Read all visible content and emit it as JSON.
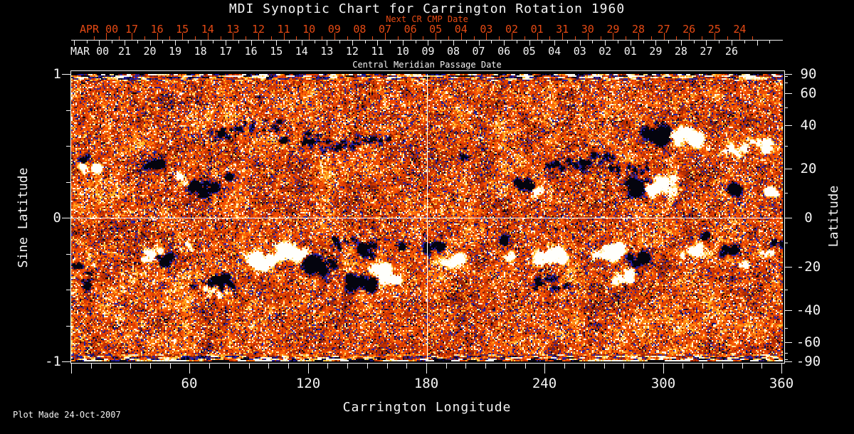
{
  "footer": {
    "plot_made": "Plot Made 24-Oct-2007"
  },
  "colors": {
    "background": "#000000",
    "foreground": "#f4f4f4",
    "next_cr_axis": "#e64a14",
    "quiet_sun": "#e84600",
    "positive_field": "#fff8e8",
    "negative_field": "#10102a",
    "crosshair": "#ffffff"
  },
  "chart_data": {
    "type": "heatmap",
    "title": "MDI Synoptic Chart for Carrington Rotation 1960",
    "description": "MDI magnetogram synoptic map: orange = quiet Sun, white/yellow = positive magnetic polarity, blue/black = negative magnetic polarity; noisy striped bands at the poles",
    "x_axis": {
      "label": "Carrington Longitude",
      "range": [
        0,
        360
      ],
      "labeled_ticks": [
        60,
        120,
        180,
        240,
        300,
        360
      ],
      "minor_tick_step_deg": 10
    },
    "y_axis_left": {
      "label": "Sine Latitude",
      "range": [
        -1,
        1
      ],
      "labeled_ticks": [
        "1",
        "0",
        "-1"
      ],
      "minor_tick_step": 0.25
    },
    "y_axis_right": {
      "label": "Latitude",
      "scale": "sine",
      "labeled_ticks": [
        "90",
        "60",
        "40",
        "20",
        "0",
        "-20",
        "-40",
        "-60",
        "-90"
      ],
      "minor_tick_step_deg": 10
    },
    "top_axis_next_cr": {
      "label": "Next CR CMP Date",
      "month": "APR 00",
      "color": "#e64a14",
      "days": [
        "17",
        "16",
        "15",
        "14",
        "13",
        "12",
        "11",
        "10",
        "09",
        "08",
        "07",
        "06",
        "05",
        "04",
        "03",
        "02",
        "01",
        "31",
        "30",
        "29",
        "28",
        "27",
        "26",
        "25",
        "24"
      ]
    },
    "top_axis_cmp": {
      "label": "Central Meridian Passage Date",
      "month": "MAR 00",
      "days": [
        "21",
        "20",
        "19",
        "18",
        "17",
        "16",
        "15",
        "14",
        "13",
        "12",
        "11",
        "10",
        "09",
        "08",
        "07",
        "06",
        "05",
        "04",
        "03",
        "02",
        "01",
        "29",
        "28",
        "27",
        "26"
      ]
    },
    "crosshair": {
      "longitude": 180,
      "sine_latitude": 0
    },
    "colormap": {
      "quiet": "#e84600",
      "positive": [
        "#ff8c12",
        "#ffc42c",
        "#ffe48c",
        "#fffae8"
      ],
      "negative": [
        "#a82804",
        "#6e1a10",
        "#3c28a0",
        "#1e1eb4",
        "#04040e"
      ]
    },
    "active_regions": [
      {
        "lon": 10,
        "lat": 20,
        "polarity": "positive",
        "size": "medium"
      },
      {
        "lon": 6,
        "lat": 25,
        "polarity": "negative",
        "size": "small"
      },
      {
        "lon": 41,
        "lat": 22,
        "polarity": "negative",
        "size": "medium"
      },
      {
        "lon": 55,
        "lat": 16,
        "polarity": "positive",
        "size": "small"
      },
      {
        "lon": 67,
        "lat": 12,
        "polarity": "negative",
        "size": "large"
      },
      {
        "lon": 80,
        "lat": 17,
        "polarity": "negative",
        "size": "small"
      },
      {
        "lon": 76,
        "lat": 36,
        "polarity": "negative",
        "size": "scatter"
      },
      {
        "lon": 95,
        "lat": 40,
        "polarity": "negative",
        "size": "scatter"
      },
      {
        "lon": 115,
        "lat": 34,
        "polarity": "negative",
        "size": "scatter"
      },
      {
        "lon": 130,
        "lat": 30,
        "polarity": "negative",
        "size": "scatter"
      },
      {
        "lon": 152,
        "lat": 32,
        "polarity": "negative",
        "size": "scatter"
      },
      {
        "lon": 198,
        "lat": 25,
        "polarity": "negative",
        "size": "small"
      },
      {
        "lon": 229,
        "lat": 13,
        "polarity": "negative",
        "size": "medium"
      },
      {
        "lon": 236,
        "lat": 11,
        "polarity": "positive",
        "size": "small"
      },
      {
        "lon": 250,
        "lat": 22,
        "polarity": "negative",
        "size": "scatter"
      },
      {
        "lon": 268,
        "lat": 25,
        "polarity": "negative",
        "size": "scatter"
      },
      {
        "lon": 282,
        "lat": 20,
        "polarity": "negative",
        "size": "scatter"
      },
      {
        "lon": 288,
        "lat": 13,
        "polarity": "negative",
        "size": "large"
      },
      {
        "lon": 297,
        "lat": 13,
        "polarity": "positive",
        "size": "large"
      },
      {
        "lon": 297,
        "lat": 35,
        "polarity": "negative",
        "size": "large"
      },
      {
        "lon": 310,
        "lat": 34,
        "polarity": "positive",
        "size": "large"
      },
      {
        "lon": 348,
        "lat": 30,
        "polarity": "positive",
        "size": "medium"
      },
      {
        "lon": 332,
        "lat": 28,
        "polarity": "positive",
        "size": "scatter"
      },
      {
        "lon": 337,
        "lat": 12,
        "polarity": "negative",
        "size": "medium"
      },
      {
        "lon": 354,
        "lat": 11,
        "polarity": "positive",
        "size": "medium"
      },
      {
        "lon": 3,
        "lat": -20,
        "polarity": "negative",
        "size": "scatter"
      },
      {
        "lon": 8,
        "lat": -27,
        "polarity": "negative",
        "size": "small"
      },
      {
        "lon": 40,
        "lat": -15,
        "polarity": "positive",
        "size": "medium"
      },
      {
        "lon": 47,
        "lat": -17,
        "polarity": "negative",
        "size": "medium"
      },
      {
        "lon": 58,
        "lat": -11,
        "polarity": "positive",
        "size": "small"
      },
      {
        "lon": 68,
        "lat": -28,
        "polarity": "negative",
        "size": "scatter"
      },
      {
        "lon": 70,
        "lat": -31,
        "polarity": "positive",
        "size": "scatter"
      },
      {
        "lon": 77,
        "lat": -26,
        "polarity": "negative",
        "size": "medium"
      },
      {
        "lon": 98,
        "lat": -18,
        "polarity": "positive",
        "size": "large"
      },
      {
        "lon": 113,
        "lat": -14,
        "polarity": "positive",
        "size": "large"
      },
      {
        "lon": 125,
        "lat": -19,
        "polarity": "negative",
        "size": "large"
      },
      {
        "lon": 141,
        "lat": -10,
        "polarity": "negative",
        "size": "scatter"
      },
      {
        "lon": 146,
        "lat": -26,
        "polarity": "negative",
        "size": "large"
      },
      {
        "lon": 158,
        "lat": -23,
        "polarity": "positive",
        "size": "large"
      },
      {
        "lon": 150,
        "lat": -13,
        "polarity": "negative",
        "size": "medium"
      },
      {
        "lon": 166,
        "lat": -11,
        "polarity": "negative",
        "size": "small"
      },
      {
        "lon": 184,
        "lat": -12,
        "polarity": "negative",
        "size": "medium"
      },
      {
        "lon": 192,
        "lat": -17,
        "polarity": "positive",
        "size": "medium"
      },
      {
        "lon": 217,
        "lat": -9,
        "polarity": "negative",
        "size": "small"
      },
      {
        "lon": 221,
        "lat": -15,
        "polarity": "positive",
        "size": "small"
      },
      {
        "lon": 243,
        "lat": -16,
        "polarity": "positive",
        "size": "large"
      },
      {
        "lon": 245,
        "lat": -27,
        "polarity": "negative",
        "size": "scatter"
      },
      {
        "lon": 272,
        "lat": -14,
        "polarity": "positive",
        "size": "large"
      },
      {
        "lon": 280,
        "lat": -24,
        "polarity": "positive",
        "size": "medium"
      },
      {
        "lon": 287,
        "lat": -17,
        "polarity": "negative",
        "size": "medium"
      },
      {
        "lon": 313,
        "lat": -13,
        "polarity": "positive",
        "size": "medium"
      },
      {
        "lon": 319,
        "lat": -7,
        "polarity": "negative",
        "size": "small"
      },
      {
        "lon": 333,
        "lat": -13,
        "polarity": "negative",
        "size": "medium"
      },
      {
        "lon": 341,
        "lat": -18,
        "polarity": "positive",
        "size": "small"
      },
      {
        "lon": 352,
        "lat": -15,
        "polarity": "positive",
        "size": "small"
      },
      {
        "lon": 357,
        "lat": -10,
        "polarity": "negative",
        "size": "small"
      }
    ]
  }
}
